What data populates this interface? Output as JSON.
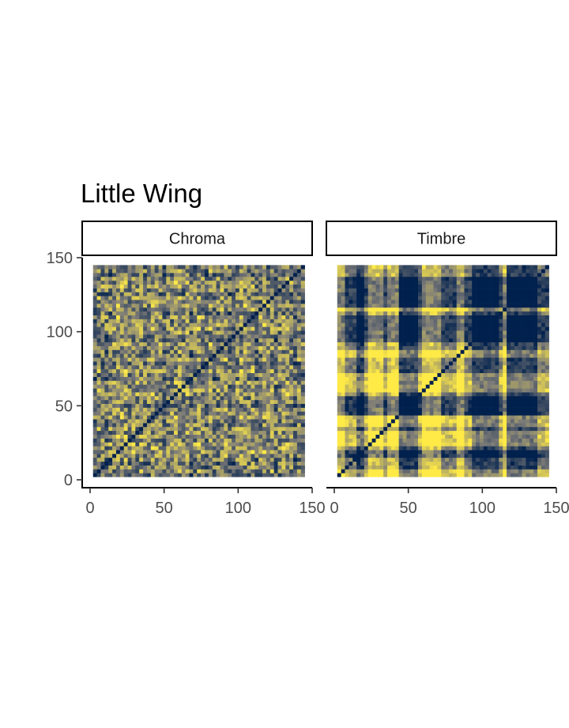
{
  "chart_data": {
    "type": "heatmap",
    "title": "Little Wing",
    "xlabel": "",
    "ylabel": "",
    "xlim": [
      0,
      150
    ],
    "ylim": [
      0,
      150
    ],
    "x_ticks": [
      0,
      50,
      100,
      150
    ],
    "y_ticks": [
      0,
      50,
      100,
      150
    ],
    "grid": false,
    "n_frames": 55,
    "frame_step": 2.6,
    "color_low": "#00204d",
    "color_mid": "#7c7b78",
    "color_high": "#ffea46",
    "panels": [
      {
        "name": "Chroma",
        "seed": 17,
        "base": 0.5,
        "noise": 0.36,
        "block_strength": 0.15,
        "bright_rows": [
          6,
          7,
          10,
          15,
          21,
          22,
          30,
          34,
          38,
          41,
          46,
          50
        ],
        "bright_cols": [
          8,
          12,
          16,
          24,
          27,
          33,
          39,
          44,
          49
        ],
        "dark_rows": [
          0,
          3,
          25,
          31,
          36,
          42,
          52,
          54
        ],
        "dark_cols": [
          18,
          29,
          35,
          47,
          52
        ]
      },
      {
        "name": "Timbre",
        "seed": 91,
        "base": 0.5,
        "noise": 0.16,
        "block_strength": 0.34,
        "bright_rows": [
          0,
          1,
          8,
          9,
          10,
          11,
          13,
          14,
          15,
          22,
          23,
          24,
          25,
          26,
          31,
          32,
          43
        ],
        "bright_cols": [
          0,
          1,
          8,
          9,
          10,
          11,
          13,
          14,
          15,
          22,
          23,
          24,
          25,
          26,
          31,
          32,
          43
        ],
        "dark_rows": [
          5,
          6,
          16,
          17,
          18,
          19,
          20,
          35,
          36,
          37,
          38,
          39,
          40,
          41,
          44,
          45,
          46,
          47,
          48,
          49,
          50,
          51
        ],
        "dark_cols": [
          5,
          6,
          16,
          17,
          18,
          19,
          20,
          35,
          36,
          37,
          38,
          39,
          40,
          41,
          44,
          45,
          46,
          47,
          48,
          49,
          50,
          51
        ]
      }
    ]
  }
}
